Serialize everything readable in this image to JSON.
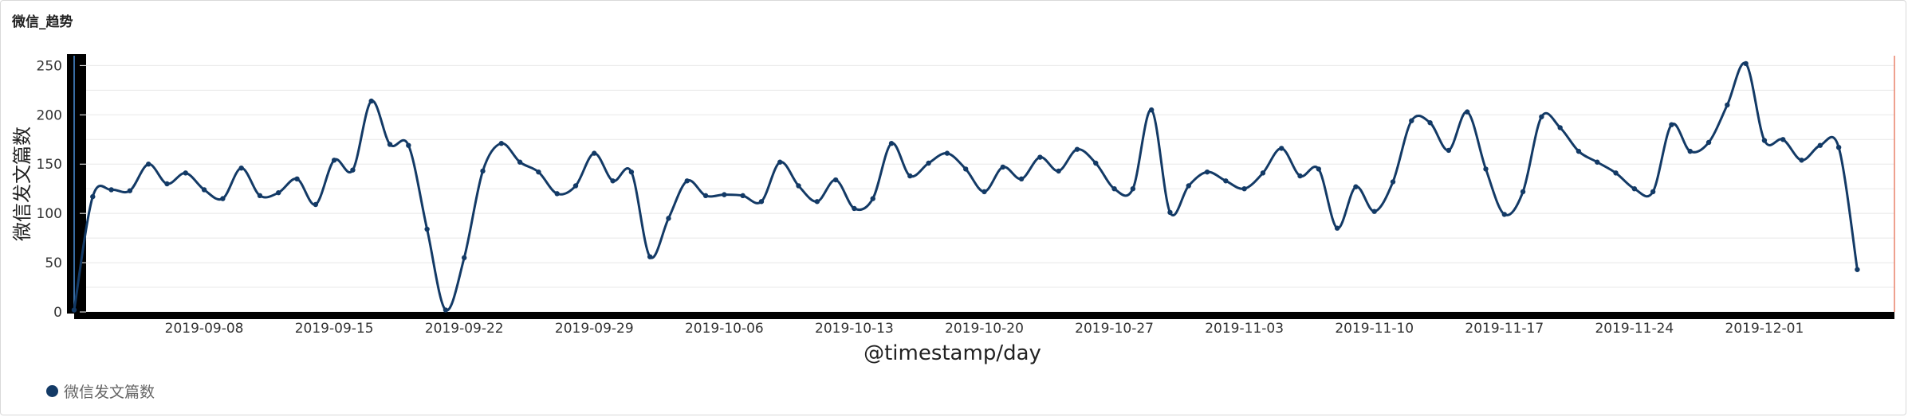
{
  "panel": {
    "title": "微信_趋势"
  },
  "colors": {
    "series": "#133a66",
    "axis": "#000000",
    "grid": "#e8e8e8",
    "cursor_left": "#4a90d9",
    "cursor_right": "#e8826a"
  },
  "chart_data": {
    "type": "line",
    "title": "微信_趋势",
    "xlabel": "@timestamp/day",
    "ylabel": "微信发文篇数",
    "ylim": [
      0,
      260
    ],
    "yticks": [
      0,
      50,
      100,
      150,
      200,
      250
    ],
    "x_start": "2019-09-01",
    "x_end": "2019-12-08",
    "xticks": [
      "2019-09-08",
      "2019-09-15",
      "2019-09-22",
      "2019-09-29",
      "2019-10-06",
      "2019-10-13",
      "2019-10-20",
      "2019-10-27",
      "2019-11-03",
      "2019-11-10",
      "2019-11-17",
      "2019-11-24",
      "2019-12-01"
    ],
    "grid": true,
    "legend": "bottom-left",
    "series": [
      {
        "name": "微信发文篇数",
        "values": [
          2,
          117,
          124,
          123,
          150,
          130,
          141,
          124,
          115,
          146,
          118,
          121,
          135,
          109,
          154,
          144,
          214,
          170,
          169,
          84,
          2,
          55,
          143,
          171,
          152,
          142,
          120,
          128,
          161,
          133,
          142,
          56,
          95,
          133,
          118,
          119,
          118,
          112,
          152,
          128,
          112,
          134,
          105,
          115,
          171,
          138,
          151,
          161,
          145,
          122,
          147,
          135,
          157,
          143,
          165,
          151,
          125,
          125,
          205,
          101,
          128,
          142,
          133,
          125,
          141,
          166,
          138,
          145,
          85,
          127,
          102,
          132,
          194,
          192,
          164,
          203,
          145,
          99,
          122,
          198,
          187,
          163,
          152,
          141,
          125,
          122,
          190,
          163,
          172,
          210,
          252,
          174,
          175,
          154,
          169,
          167,
          43
        ]
      }
    ]
  }
}
